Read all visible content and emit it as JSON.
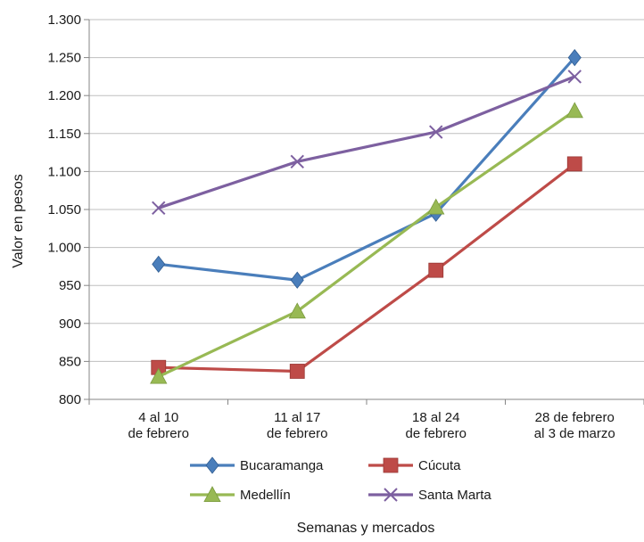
{
  "chart_data": {
    "type": "line",
    "title": "",
    "xlabel": "Semanas y mercados",
    "ylabel": "Valor en pesos",
    "ylim": [
      800,
      1300
    ],
    "ytick_step": 50,
    "ytick_labels": [
      "800",
      "850",
      "900",
      "950",
      "1.000",
      "1.050",
      "1.100",
      "1.150",
      "1.200",
      "1.250",
      "1.300"
    ],
    "grid": "horizontal",
    "legend_position": "bottom",
    "categories": [
      [
        "4 al 10",
        "de febrero"
      ],
      [
        "11 al 17",
        "de febrero"
      ],
      [
        "18 al 24",
        "de febrero"
      ],
      [
        "28 de febrero",
        "al 3 de marzo"
      ]
    ],
    "series": [
      {
        "name": "Bucaramanga",
        "color": "#4a7ebb",
        "marker": "diamond",
        "values": [
          978,
          957,
          1045,
          1250
        ]
      },
      {
        "name": "Cúcuta",
        "color": "#be4b48",
        "marker": "square",
        "values": [
          842,
          837,
          970,
          1110
        ]
      },
      {
        "name": "Medellín",
        "color": "#98b954",
        "marker": "triangle",
        "values": [
          830,
          916,
          1053,
          1180
        ]
      },
      {
        "name": "Santa Marta",
        "color": "#7d60a0",
        "marker": "x",
        "values": [
          1052,
          1113,
          1152,
          1225
        ]
      }
    ]
  }
}
